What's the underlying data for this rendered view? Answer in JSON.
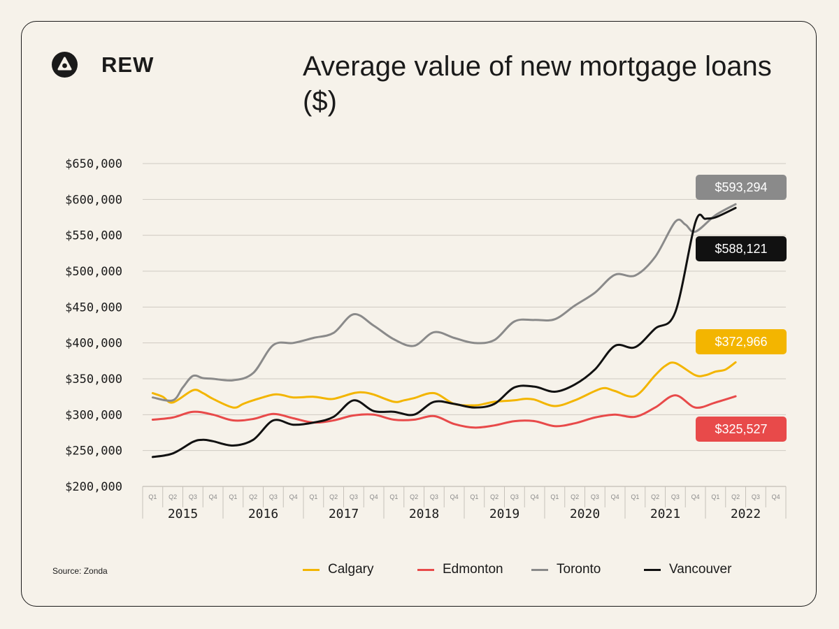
{
  "brand": {
    "name": "REW"
  },
  "source": "Source: Zonda",
  "chart_data": {
    "type": "line",
    "title": "Average value of new mortgage loans ($)",
    "xlabel": "",
    "ylabel": "",
    "ylim": [
      200000,
      650000
    ],
    "yticks": [
      "$200,000",
      "$250,000",
      "$300,000",
      "$350,000",
      "$400,000",
      "$450,000",
      "$500,000",
      "$550,000",
      "$600,000",
      "$650,000"
    ],
    "yticks_values": [
      200000,
      250000,
      300000,
      350000,
      400000,
      450000,
      500000,
      550000,
      600000,
      650000
    ],
    "years": [
      "2015",
      "2016",
      "2017",
      "2018",
      "2019",
      "2020",
      "2021",
      "2022"
    ],
    "quarters": [
      "Q1",
      "Q2",
      "Q3",
      "Q4"
    ],
    "grid": true,
    "legend_position": "bottom",
    "series": [
      {
        "name": "Calgary",
        "color": "#f3b500",
        "x": [
          0,
          0.5,
          1,
          2,
          2.5,
          3,
          4,
          4.5,
          5,
          6,
          6.5,
          7,
          8,
          8.5,
          9,
          10,
          10.5,
          11,
          12,
          12.5,
          13,
          14,
          15,
          16,
          16.5,
          17,
          18,
          18.5,
          19,
          20,
          21,
          22,
          22.5,
          23,
          24,
          25,
          25.5,
          26,
          27,
          27.5,
          28,
          28.5,
          29
        ],
        "values": [
          330000,
          325000,
          317000,
          334000,
          330000,
          322000,
          310000,
          315000,
          320000,
          328000,
          327000,
          324000,
          325000,
          323000,
          322000,
          330000,
          331000,
          328000,
          318000,
          320000,
          323000,
          330000,
          315000,
          313000,
          315000,
          318000,
          320000,
          322000,
          321000,
          312000,
          320000,
          333000,
          337000,
          333000,
          326000,
          355000,
          368000,
          372000,
          355000,
          355000,
          360000,
          363000,
          372966
        ]
      },
      {
        "name": "Edmonton",
        "color": "#e84a4a",
        "x": [
          0,
          1,
          2,
          3,
          4,
          5,
          6,
          7,
          8,
          9,
          10,
          11,
          12,
          13,
          14,
          15,
          16,
          17,
          18,
          19,
          20,
          21,
          22,
          23,
          24,
          25,
          26,
          27,
          28,
          29
        ],
        "values": [
          293000,
          296000,
          304000,
          300000,
          292000,
          294000,
          301000,
          295000,
          289000,
          292000,
          299000,
          300000,
          293000,
          293000,
          298000,
          287000,
          282000,
          285000,
          291000,
          291000,
          284000,
          288000,
          296000,
          300000,
          297000,
          310000,
          327000,
          310000,
          317000,
          325527
        ]
      },
      {
        "name": "Toronto",
        "color": "#8a8a8a",
        "x": [
          0,
          1,
          1.5,
          2,
          2.5,
          3,
          4,
          5,
          6,
          7,
          8,
          9,
          10,
          11,
          12,
          13,
          14,
          15,
          16,
          17,
          18,
          19,
          20,
          21,
          22,
          23,
          24,
          25,
          26,
          26.5,
          27,
          28,
          29
        ],
        "values": [
          324000,
          320000,
          338000,
          354000,
          351000,
          350000,
          348000,
          358000,
          397000,
          400000,
          407000,
          414000,
          440000,
          424000,
          405000,
          396000,
          415000,
          407000,
          400000,
          404000,
          430000,
          432000,
          433000,
          452000,
          470000,
          495000,
          494000,
          520000,
          569000,
          565000,
          555000,
          578000,
          593294
        ]
      },
      {
        "name": "Vancouver",
        "color": "#111111",
        "x": [
          0,
          1,
          2,
          2.5,
          3,
          4,
          5,
          6,
          7,
          8,
          9,
          10,
          11,
          12,
          13,
          14,
          15,
          16,
          17,
          18,
          19,
          20,
          21,
          22,
          23,
          24,
          25,
          26,
          27,
          27.5,
          28,
          29
        ],
        "values": [
          241000,
          246000,
          262000,
          265000,
          263000,
          257000,
          265000,
          292000,
          286000,
          289000,
          297000,
          320000,
          305000,
          304000,
          300000,
          318000,
          315000,
          310000,
          315000,
          338000,
          339000,
          332000,
          342000,
          363000,
          396000,
          394000,
          420000,
          443000,
          568000,
          573000,
          575000,
          588121
        ]
      }
    ],
    "end_labels": [
      {
        "series": "Toronto",
        "text": "$593,294",
        "color": "#8a8a8a"
      },
      {
        "series": "Vancouver",
        "text": "$588,121",
        "color": "#111111"
      },
      {
        "series": "Calgary",
        "text": "$372,966",
        "color": "#f3b500"
      },
      {
        "series": "Edmonton",
        "text": "$325,527",
        "color": "#e84a4a"
      }
    ]
  }
}
